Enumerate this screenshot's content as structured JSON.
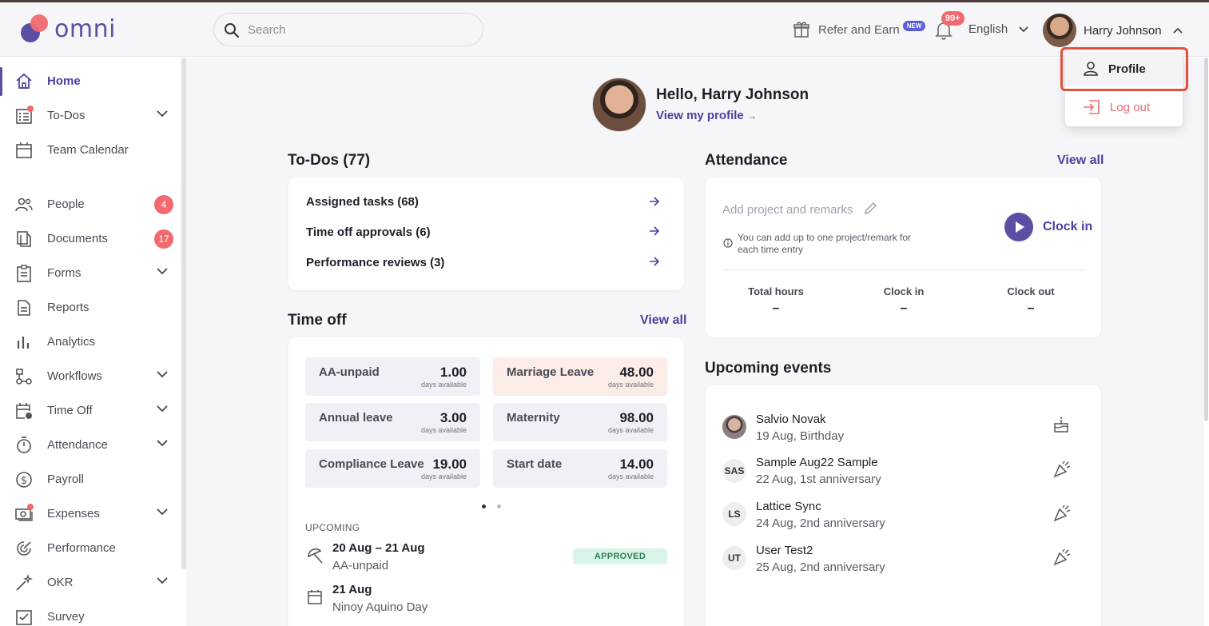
{
  "app": {
    "logo_text": "omni"
  },
  "header": {
    "search_placeholder": "Search",
    "refer_label": "Refer and Earn",
    "new_badge": "NEW",
    "notifications_badge": "99+",
    "language": "English",
    "user_name": "Harry Johnson"
  },
  "user_menu": {
    "profile": "Profile",
    "logout": "Log out"
  },
  "sidebar": {
    "items": [
      {
        "label": "Home"
      },
      {
        "label": "To-Dos"
      },
      {
        "label": "Team Calendar"
      },
      {
        "label": "People",
        "count": "4"
      },
      {
        "label": "Documents",
        "count": "17"
      },
      {
        "label": "Forms"
      },
      {
        "label": "Reports"
      },
      {
        "label": "Analytics"
      },
      {
        "label": "Workflows"
      },
      {
        "label": "Time Off"
      },
      {
        "label": "Attendance"
      },
      {
        "label": "Payroll"
      },
      {
        "label": "Expenses"
      },
      {
        "label": "Performance"
      },
      {
        "label": "OKR"
      },
      {
        "label": "Survey"
      }
    ]
  },
  "greeting": {
    "hello": "Hello, Harry Johnson",
    "view_profile": "View my profile"
  },
  "todos": {
    "title": "To-Dos (77)",
    "rows": [
      "Assigned tasks (68)",
      "Time off approvals (6)",
      "Performance reviews (3)"
    ]
  },
  "timeoff": {
    "title": "Time off",
    "view_all": "View all",
    "days_label": "days available",
    "tiles": [
      {
        "name": "AA-unpaid",
        "value": "1.00"
      },
      {
        "name": "Marriage Leave",
        "value": "48.00"
      },
      {
        "name": "Annual leave",
        "value": "3.00"
      },
      {
        "name": "Maternity",
        "value": "98.00"
      },
      {
        "name": "Compliance Leave",
        "value": "19.00"
      },
      {
        "name": "Start date",
        "value": "14.00"
      }
    ],
    "upcoming_label": "UPCOMING",
    "upcoming": [
      {
        "date": "20 Aug – 21 Aug",
        "sub": "AA-unpaid",
        "status": "APPROVED"
      },
      {
        "date": "21 Aug",
        "sub": "Ninoy Aquino Day"
      }
    ]
  },
  "attendance": {
    "title": "Attendance",
    "view_all": "View all",
    "add_placeholder": "Add project and remarks",
    "info": "You can add up to one project/remark for each time entry",
    "clock_in": "Clock in",
    "cols": [
      {
        "label": "Total hours",
        "value": "–"
      },
      {
        "label": "Clock in",
        "value": "–"
      },
      {
        "label": "Clock out",
        "value": "–"
      }
    ]
  },
  "events": {
    "title": "Upcoming events",
    "items": [
      {
        "initials": "",
        "name": "Salvio Novak",
        "date": "19 Aug, Birthday",
        "icon": "cake-icon"
      },
      {
        "initials": "SAS",
        "name": "Sample Aug22 Sample",
        "date": "22 Aug, 1st anniversary",
        "icon": "party-icon"
      },
      {
        "initials": "LS",
        "name": "Lattice Sync",
        "date": "24 Aug, 2nd anniversary",
        "icon": "party-icon"
      },
      {
        "initials": "UT",
        "name": "User Test2",
        "date": "25 Aug, 2nd anniversary",
        "icon": "party-icon"
      }
    ]
  },
  "colors": {
    "brand": "#5b4fa3",
    "accent": "#f06a6f",
    "highlight": "#e1523e",
    "approved_bg": "#d8f5e7"
  }
}
